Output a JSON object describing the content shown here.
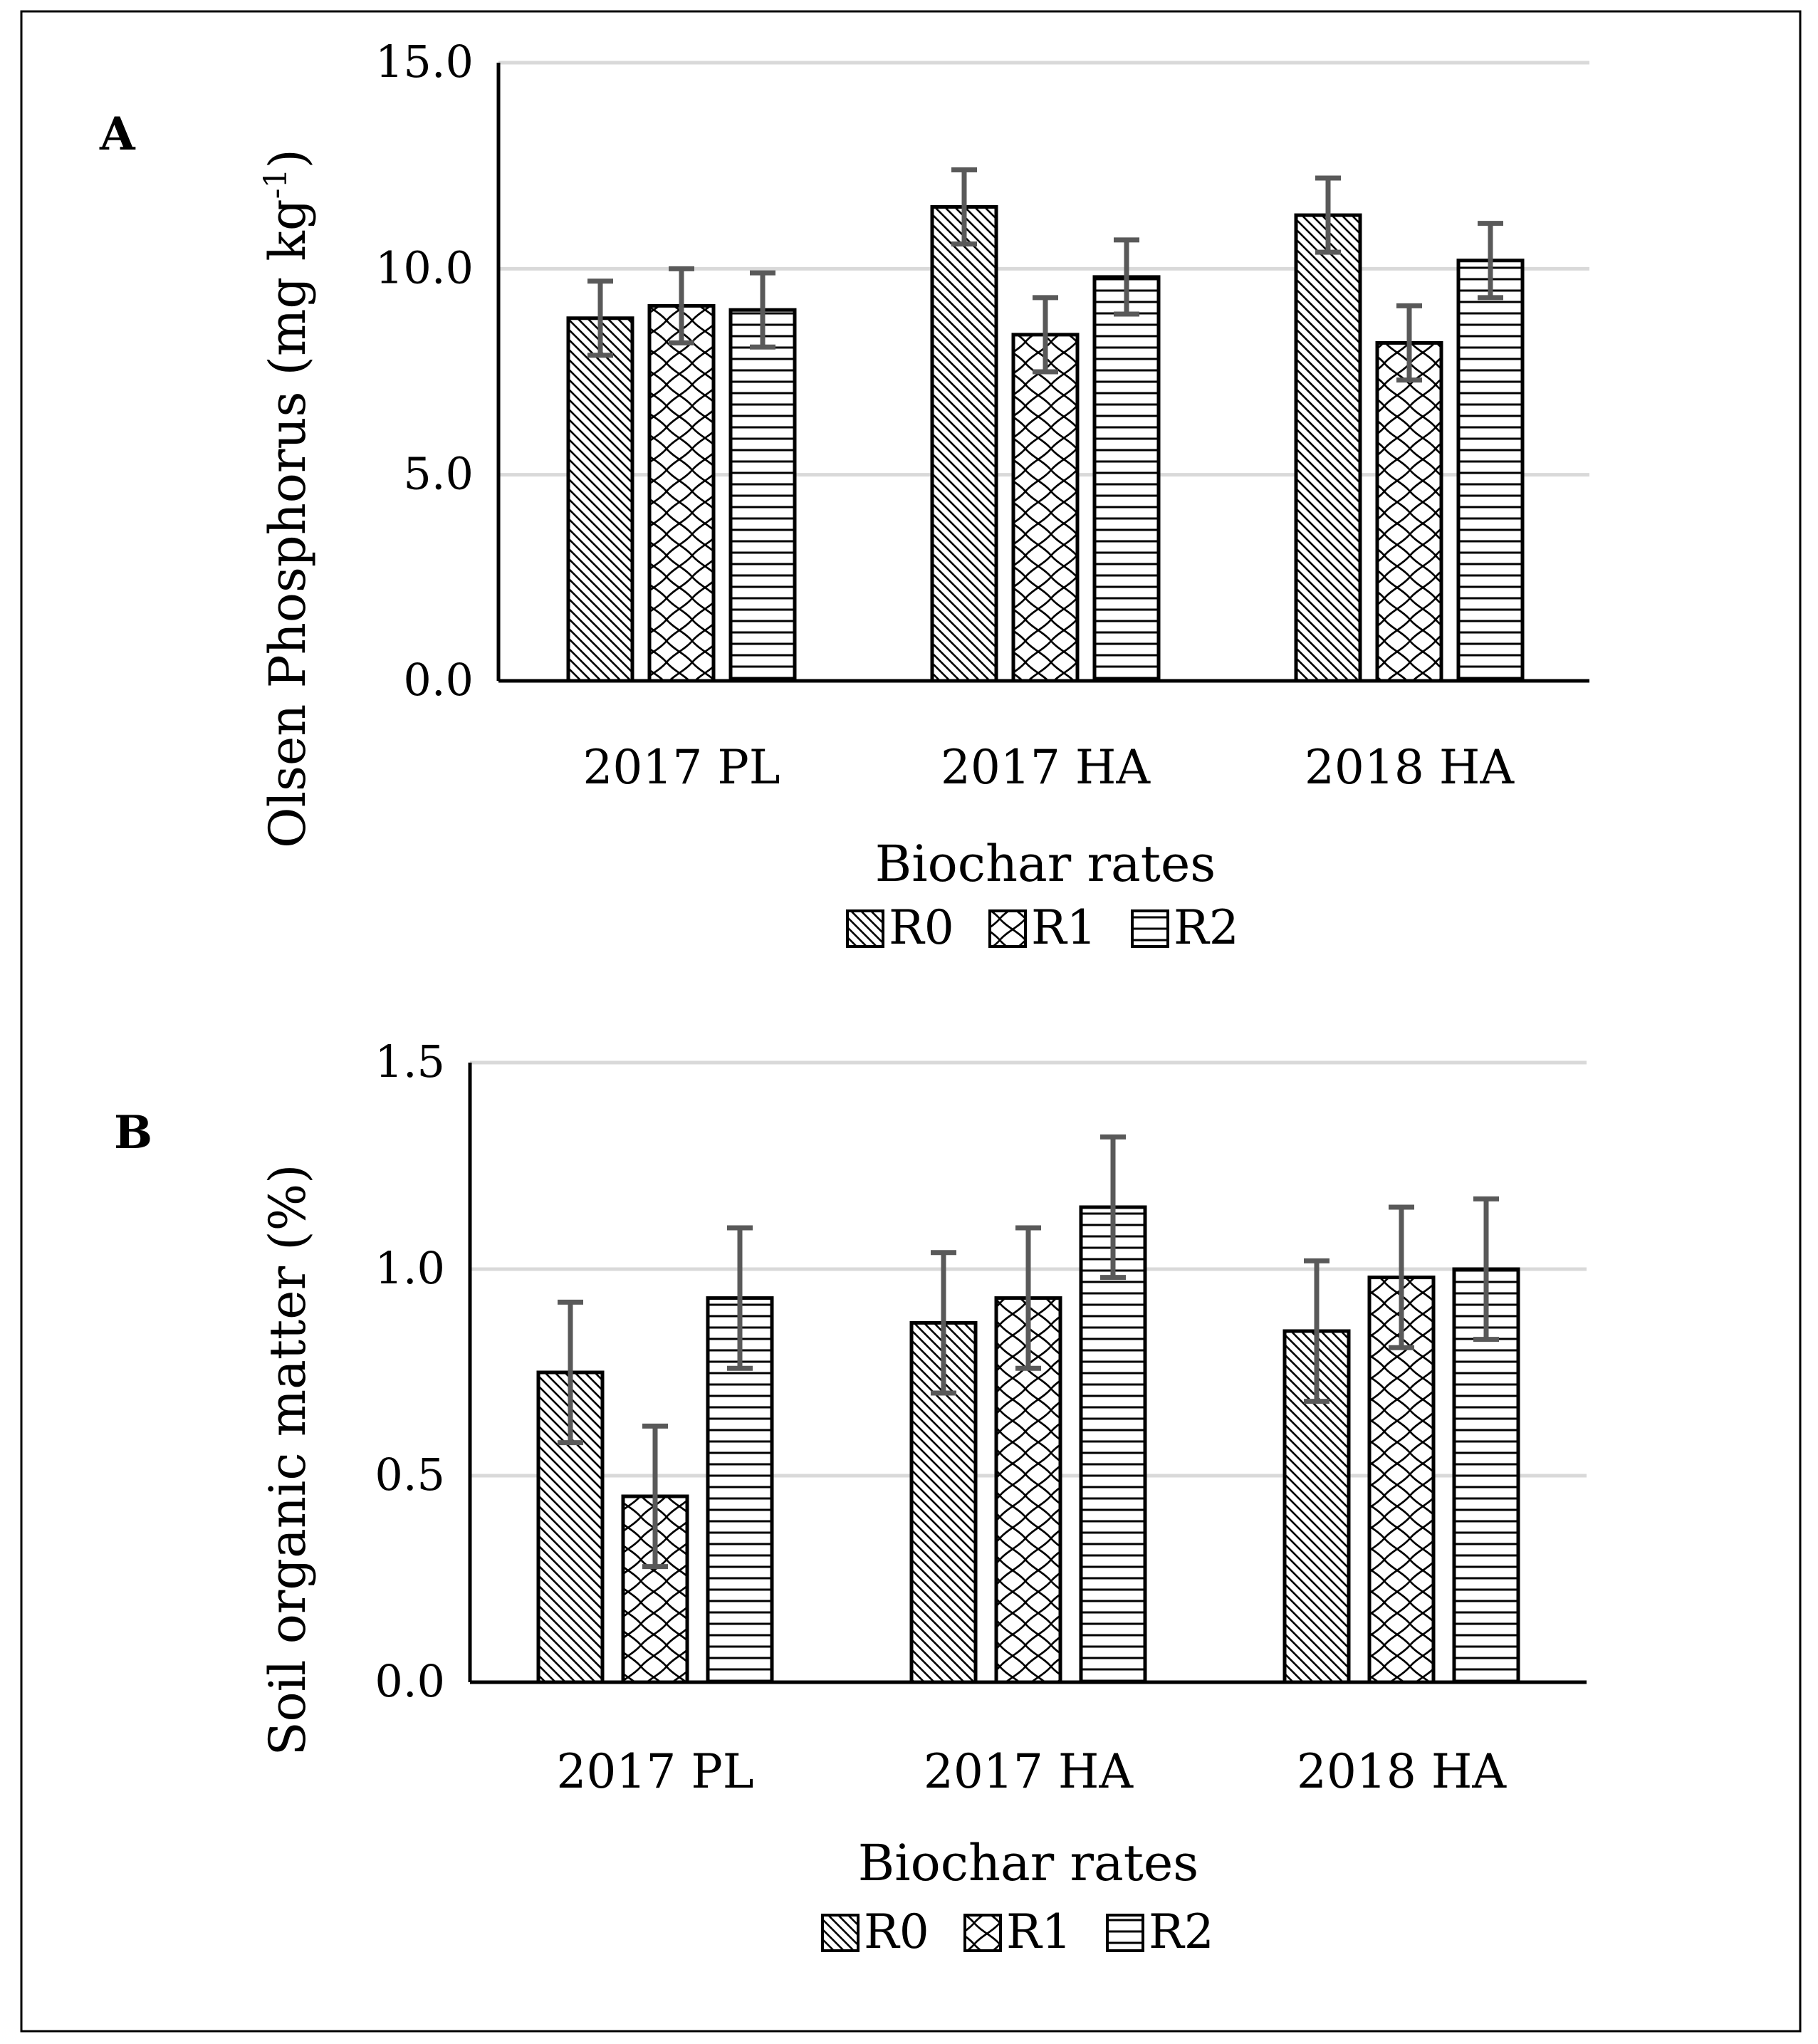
{
  "chart_data": [
    {
      "panel": "A",
      "type": "bar",
      "ylabel": "Olsen Phosphorus (mg kg-1)",
      "ylabel_main": "Olsen Phosphorus (mg kg",
      "ylabel_sup": "-1",
      "ylabel_close": ")",
      "xlabel": "Biochar rates",
      "ylim": [
        0,
        15
      ],
      "yticks": [
        "0.0",
        "5.0",
        "10.0",
        "15.0"
      ],
      "ytick_values": [
        0,
        5,
        10,
        15
      ],
      "categories": [
        "2017 PL",
        "2017 HA",
        "2018 HA"
      ],
      "series": [
        {
          "name": "R0",
          "values": [
            8.8,
            11.5,
            11.3
          ],
          "errors": [
            0.9,
            0.9,
            0.9
          ]
        },
        {
          "name": "R1",
          "values": [
            9.1,
            8.4,
            8.2
          ],
          "errors": [
            0.9,
            0.9,
            0.9
          ]
        },
        {
          "name": "R2",
          "values": [
            9.0,
            9.8,
            10.2
          ],
          "errors": [
            0.9,
            0.9,
            0.9
          ]
        }
      ],
      "legend": [
        "R0",
        "R1",
        "R2"
      ],
      "grid": true
    },
    {
      "panel": "B",
      "type": "bar",
      "ylabel": "Soil organic matter (%)",
      "xlabel": "Biochar rates",
      "ylim": [
        0,
        1.5
      ],
      "yticks": [
        "0.0",
        "0.5",
        "1.0",
        "1.5"
      ],
      "ytick_values": [
        0,
        0.5,
        1.0,
        1.5
      ],
      "categories": [
        "2017 PL",
        "2017 HA",
        "2018 HA"
      ],
      "series": [
        {
          "name": "R0",
          "values": [
            0.75,
            0.87,
            0.85
          ],
          "errors": [
            0.17,
            0.17,
            0.17
          ]
        },
        {
          "name": "R1",
          "values": [
            0.45,
            0.93,
            0.98
          ],
          "errors": [
            0.17,
            0.17,
            0.17
          ]
        },
        {
          "name": "R2",
          "values": [
            0.93,
            1.15,
            1.0
          ],
          "errors": [
            0.17,
            0.17,
            0.17
          ]
        }
      ],
      "legend": [
        "R0",
        "R1",
        "R2"
      ],
      "grid": true
    }
  ],
  "colors": {
    "bar_outline": "#000000",
    "grid": "#d9d9d9",
    "error_bar": "#595959",
    "axis": "#000000"
  }
}
